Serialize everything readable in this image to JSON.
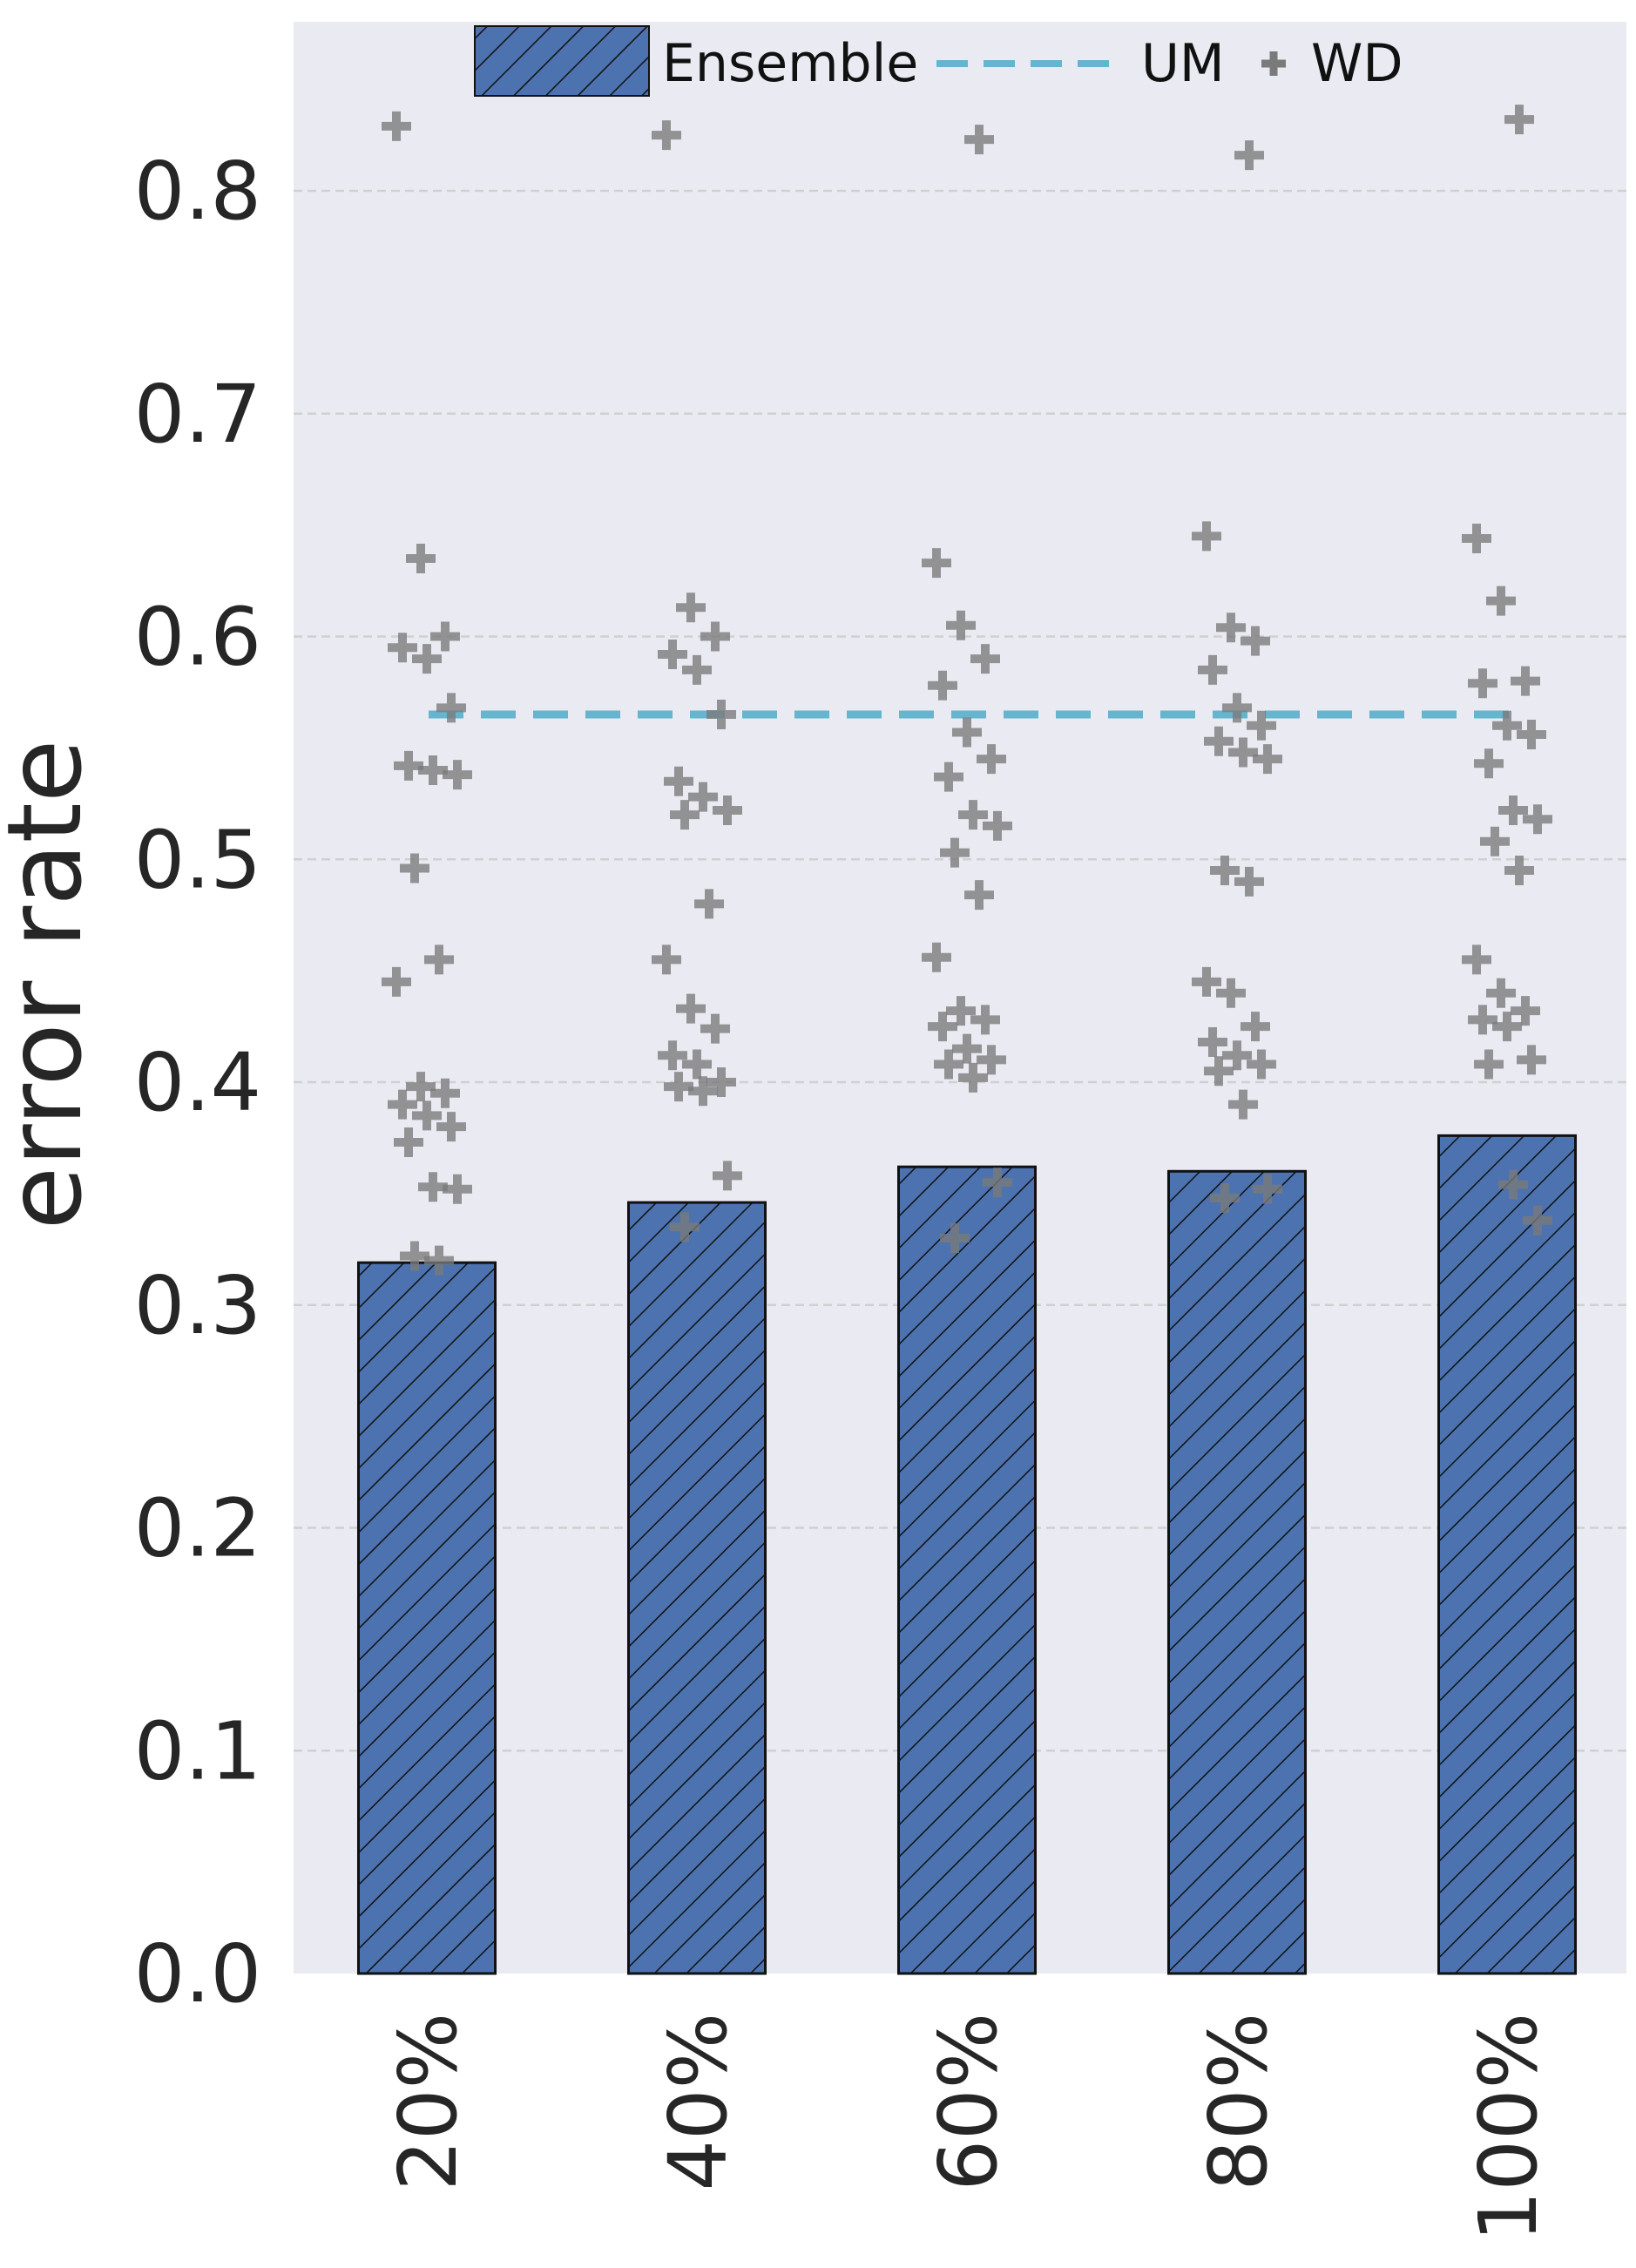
{
  "chart_data": {
    "type": "bar",
    "categories": [
      "20%",
      "40%",
      "60%",
      "80%",
      "100%"
    ],
    "xlabel": "",
    "ylabel": "error rate",
    "ylim": [
      0,
      0.88
    ],
    "yticks": [
      "0.0",
      "0.1",
      "0.2",
      "0.3",
      "0.4",
      "0.5",
      "0.6",
      "0.7",
      "0.8"
    ],
    "grid": "horizontal dashed",
    "legend_position": "top-center",
    "series": [
      {
        "name": "Ensemble",
        "kind": "bar",
        "hatch": "diagonal",
        "color": "#4c72b0",
        "values": [
          0.319,
          0.346,
          0.362,
          0.36,
          0.376
        ]
      },
      {
        "name": "UM",
        "kind": "line",
        "style": "dashed",
        "color": "#64b5cd",
        "values": [
          0.565,
          0.565,
          0.565,
          0.565,
          0.565
        ]
      },
      {
        "name": "WD",
        "kind": "scatter",
        "marker": "plus",
        "color": "#7a7a7a",
        "points": [
          [
            0,
            0.829
          ],
          [
            0,
            0.635
          ],
          [
            0,
            0.6
          ],
          [
            0,
            0.595
          ],
          [
            0,
            0.59
          ],
          [
            0,
            0.568
          ],
          [
            0,
            0.542
          ],
          [
            0,
            0.54
          ],
          [
            0,
            0.538
          ],
          [
            0,
            0.496
          ],
          [
            0,
            0.455
          ],
          [
            0,
            0.445
          ],
          [
            0,
            0.398
          ],
          [
            0,
            0.395
          ],
          [
            0,
            0.39
          ],
          [
            0,
            0.385
          ],
          [
            0,
            0.38
          ],
          [
            0,
            0.373
          ],
          [
            0,
            0.353
          ],
          [
            0,
            0.352
          ],
          [
            0,
            0.322
          ],
          [
            0,
            0.32
          ],
          [
            1,
            0.825
          ],
          [
            1,
            0.613
          ],
          [
            1,
            0.6
          ],
          [
            1,
            0.592
          ],
          [
            1,
            0.585
          ],
          [
            1,
            0.565
          ],
          [
            1,
            0.535
          ],
          [
            1,
            0.528
          ],
          [
            1,
            0.522
          ],
          [
            1,
            0.52
          ],
          [
            1,
            0.48
          ],
          [
            1,
            0.455
          ],
          [
            1,
            0.433
          ],
          [
            1,
            0.424
          ],
          [
            1,
            0.412
          ],
          [
            1,
            0.408
          ],
          [
            1,
            0.4
          ],
          [
            1,
            0.398
          ],
          [
            1,
            0.396
          ],
          [
            1,
            0.358
          ],
          [
            1,
            0.335
          ],
          [
            2,
            0.823
          ],
          [
            2,
            0.633
          ],
          [
            2,
            0.605
          ],
          [
            2,
            0.59
          ],
          [
            2,
            0.578
          ],
          [
            2,
            0.557
          ],
          [
            2,
            0.545
          ],
          [
            2,
            0.537
          ],
          [
            2,
            0.52
          ],
          [
            2,
            0.515
          ],
          [
            2,
            0.503
          ],
          [
            2,
            0.484
          ],
          [
            2,
            0.456
          ],
          [
            2,
            0.432
          ],
          [
            2,
            0.428
          ],
          [
            2,
            0.425
          ],
          [
            2,
            0.415
          ],
          [
            2,
            0.41
          ],
          [
            2,
            0.408
          ],
          [
            2,
            0.402
          ],
          [
            2,
            0.355
          ],
          [
            2,
            0.33
          ],
          [
            3,
            0.816
          ],
          [
            3,
            0.645
          ],
          [
            3,
            0.604
          ],
          [
            3,
            0.598
          ],
          [
            3,
            0.585
          ],
          [
            3,
            0.568
          ],
          [
            3,
            0.56
          ],
          [
            3,
            0.553
          ],
          [
            3,
            0.548
          ],
          [
            3,
            0.545
          ],
          [
            3,
            0.495
          ],
          [
            3,
            0.49
          ],
          [
            3,
            0.445
          ],
          [
            3,
            0.44
          ],
          [
            3,
            0.425
          ],
          [
            3,
            0.418
          ],
          [
            3,
            0.412
          ],
          [
            3,
            0.408
          ],
          [
            3,
            0.405
          ],
          [
            3,
            0.39
          ],
          [
            3,
            0.352
          ],
          [
            3,
            0.348
          ],
          [
            4,
            0.832
          ],
          [
            4,
            0.644
          ],
          [
            4,
            0.616
          ],
          [
            4,
            0.58
          ],
          [
            4,
            0.579
          ],
          [
            4,
            0.56
          ],
          [
            4,
            0.556
          ],
          [
            4,
            0.543
          ],
          [
            4,
            0.522
          ],
          [
            4,
            0.518
          ],
          [
            4,
            0.508
          ],
          [
            4,
            0.495
          ],
          [
            4,
            0.455
          ],
          [
            4,
            0.44
          ],
          [
            4,
            0.432
          ],
          [
            4,
            0.428
          ],
          [
            4,
            0.425
          ],
          [
            4,
            0.41
          ],
          [
            4,
            0.408
          ],
          [
            4,
            0.354
          ],
          [
            4,
            0.338
          ]
        ]
      }
    ]
  }
}
